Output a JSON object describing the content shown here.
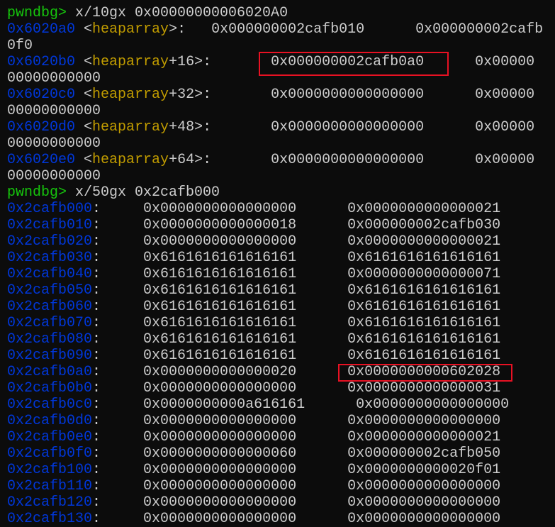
{
  "colors": {
    "background": "#0c0c0c",
    "prompt": "#16c60c",
    "address": "#0037da",
    "symbol": "#c19c00",
    "text": "#cccccc",
    "highlight": "#e81123"
  },
  "lines": [
    [
      {
        "t": "pwndbg> ",
        "c": "green"
      },
      {
        "t": "x/10gx 0x00000000006020A0",
        "c": "gray"
      }
    ],
    [
      {
        "t": "0x6020a0",
        "c": "blue"
      },
      {
        "t": " <",
        "c": "gray"
      },
      {
        "t": "heaparray",
        "c": "yellow"
      },
      {
        "t": ">:   0x000000002cafb010      0x000000002cafb",
        "c": "gray"
      }
    ],
    [
      {
        "t": "0f0",
        "c": "gray"
      }
    ],
    [
      {
        "t": "0x6020b0",
        "c": "blue"
      },
      {
        "t": " <",
        "c": "gray"
      },
      {
        "t": "heaparray",
        "c": "yellow"
      },
      {
        "t": "+16>:       0x000000002cafb0a0      0x00000",
        "c": "gray"
      }
    ],
    [
      {
        "t": "00000000000",
        "c": "gray"
      }
    ],
    [
      {
        "t": "0x6020c0",
        "c": "blue"
      },
      {
        "t": " <",
        "c": "gray"
      },
      {
        "t": "heaparray",
        "c": "yellow"
      },
      {
        "t": "+32>:       0x0000000000000000      0x00000",
        "c": "gray"
      }
    ],
    [
      {
        "t": "00000000000",
        "c": "gray"
      }
    ],
    [
      {
        "t": "0x6020d0",
        "c": "blue"
      },
      {
        "t": " <",
        "c": "gray"
      },
      {
        "t": "heaparray",
        "c": "yellow"
      },
      {
        "t": "+48>:       0x0000000000000000      0x00000",
        "c": "gray"
      }
    ],
    [
      {
        "t": "00000000000",
        "c": "gray"
      }
    ],
    [
      {
        "t": "0x6020e0",
        "c": "blue"
      },
      {
        "t": " <",
        "c": "gray"
      },
      {
        "t": "heaparray",
        "c": "yellow"
      },
      {
        "t": "+64>:       0x0000000000000000      0x00000",
        "c": "gray"
      }
    ],
    [
      {
        "t": "00000000000",
        "c": "gray"
      }
    ],
    [
      {
        "t": "pwndbg> ",
        "c": "green"
      },
      {
        "t": "x/50gx 0x2cafb000",
        "c": "gray"
      }
    ],
    [
      {
        "t": "0x2cafb000",
        "c": "blue"
      },
      {
        "t": ":     0x0000000000000000      0x0000000000000021",
        "c": "gray"
      }
    ],
    [
      {
        "t": "0x2cafb010",
        "c": "blue"
      },
      {
        "t": ":     0x0000000000000018      0x000000002cafb030",
        "c": "gray"
      }
    ],
    [
      {
        "t": "0x2cafb020",
        "c": "blue"
      },
      {
        "t": ":     0x0000000000000000      0x0000000000000021",
        "c": "gray"
      }
    ],
    [
      {
        "t": "0x2cafb030",
        "c": "blue"
      },
      {
        "t": ":     0x6161616161616161      0x6161616161616161",
        "c": "gray"
      }
    ],
    [
      {
        "t": "0x2cafb040",
        "c": "blue"
      },
      {
        "t": ":     0x6161616161616161      0x0000000000000071",
        "c": "gray"
      }
    ],
    [
      {
        "t": "0x2cafb050",
        "c": "blue"
      },
      {
        "t": ":     0x6161616161616161      0x6161616161616161",
        "c": "gray"
      }
    ],
    [
      {
        "t": "0x2cafb060",
        "c": "blue"
      },
      {
        "t": ":     0x6161616161616161      0x6161616161616161",
        "c": "gray"
      }
    ],
    [
      {
        "t": "0x2cafb070",
        "c": "blue"
      },
      {
        "t": ":     0x6161616161616161      0x6161616161616161",
        "c": "gray"
      }
    ],
    [
      {
        "t": "0x2cafb080",
        "c": "blue"
      },
      {
        "t": ":     0x6161616161616161      0x6161616161616161",
        "c": "gray"
      }
    ],
    [
      {
        "t": "0x2cafb090",
        "c": "blue"
      },
      {
        "t": ":     0x6161616161616161      0x6161616161616161",
        "c": "gray"
      }
    ],
    [
      {
        "t": "0x2cafb0a0",
        "c": "blue"
      },
      {
        "t": ":     0x0000000000000020      0x0000000000602028",
        "c": "gray"
      }
    ],
    [
      {
        "t": "0x2cafb0b0",
        "c": "blue"
      },
      {
        "t": ":     0x0000000000000000      0x0000000000000031",
        "c": "gray"
      }
    ],
    [
      {
        "t": "0x2cafb0c0",
        "c": "blue"
      },
      {
        "t": ":     0x0000000000a616161      0x0000000000000000",
        "c": "gray"
      }
    ],
    [
      {
        "t": "0x2cafb0d0",
        "c": "blue"
      },
      {
        "t": ":     0x0000000000000000      0x0000000000000000",
        "c": "gray"
      }
    ],
    [
      {
        "t": "0x2cafb0e0",
        "c": "blue"
      },
      {
        "t": ":     0x0000000000000000      0x0000000000000021",
        "c": "gray"
      }
    ],
    [
      {
        "t": "0x2cafb0f0",
        "c": "blue"
      },
      {
        "t": ":     0x0000000000000060      0x000000002cafb050",
        "c": "gray"
      }
    ],
    [
      {
        "t": "0x2cafb100",
        "c": "blue"
      },
      {
        "t": ":     0x0000000000000000      0x0000000000020f01",
        "c": "gray"
      }
    ],
    [
      {
        "t": "0x2cafb110",
        "c": "blue"
      },
      {
        "t": ":     0x0000000000000000      0x0000000000000000",
        "c": "gray"
      }
    ],
    [
      {
        "t": "0x2cafb120",
        "c": "blue"
      },
      {
        "t": ":     0x0000000000000000      0x0000000000000000",
        "c": "gray"
      }
    ],
    [
      {
        "t": "0x2cafb130",
        "c": "blue"
      },
      {
        "t": ":     0x0000000000000000      0x0000000000000000",
        "c": "gray"
      }
    ]
  ]
}
